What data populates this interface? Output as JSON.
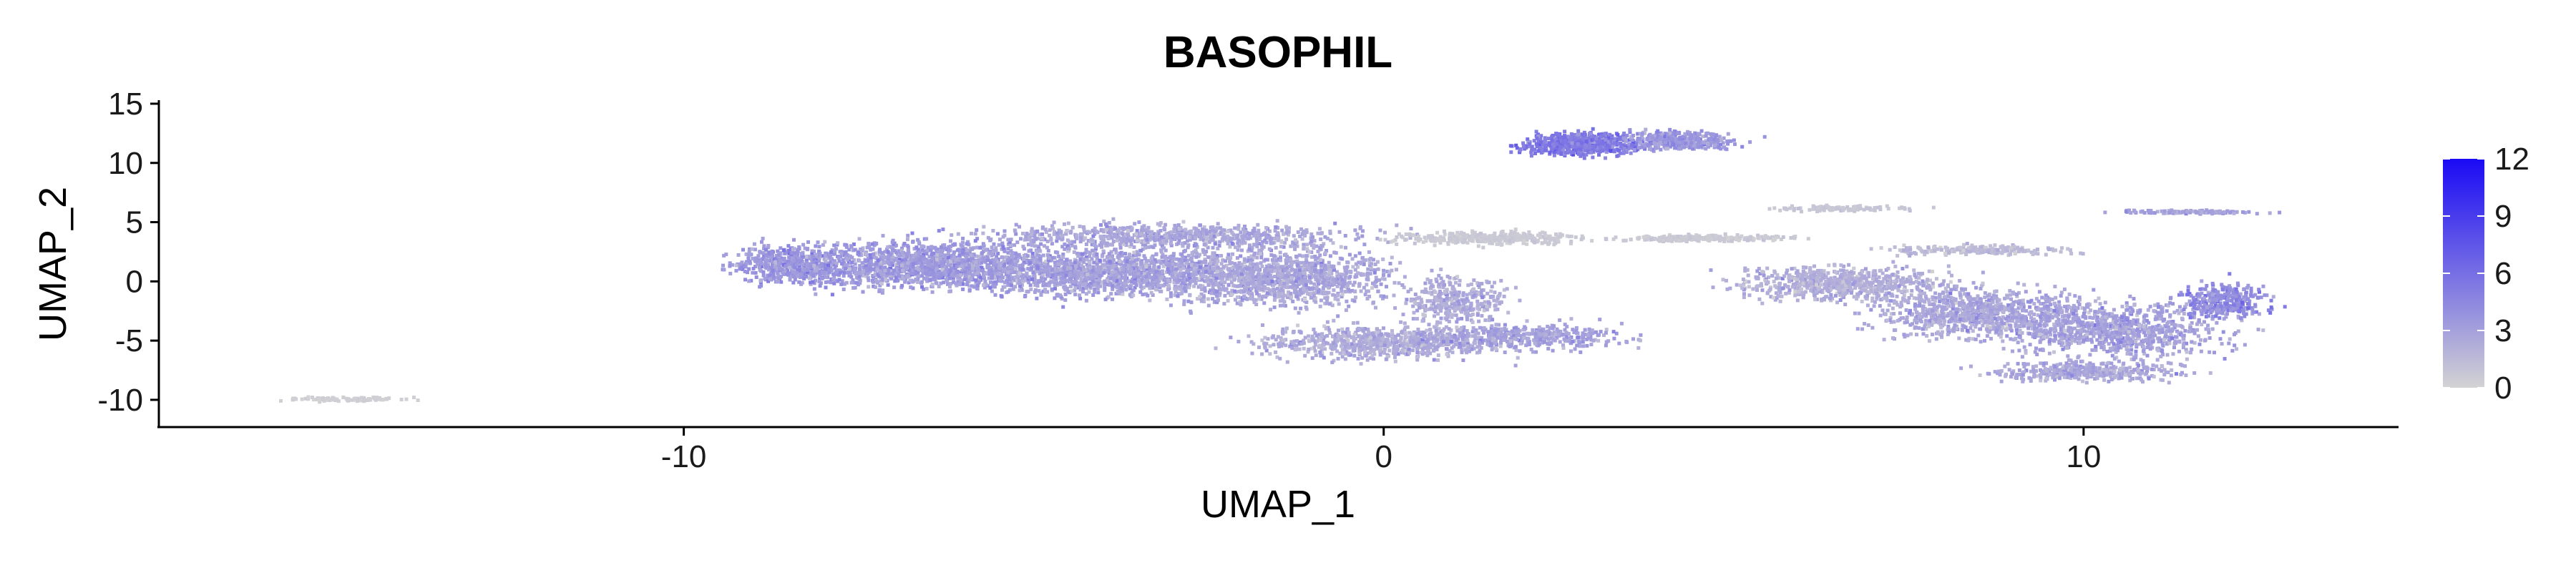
{
  "chart_data": {
    "type": "scatter",
    "title": "BASOPHIL",
    "xlabel": "UMAP_1",
    "ylabel": "UMAP_2",
    "xlim": [
      -17.5,
      14.5
    ],
    "ylim": [
      -12.3,
      15.3
    ],
    "x_ticks": [
      -10,
      0,
      10
    ],
    "y_ticks": [
      15,
      10,
      5,
      0,
      -5,
      -10
    ],
    "grid": false,
    "legend": {
      "placement": "right",
      "type": "colorbar",
      "min": 0,
      "max": 12,
      "ticks": [
        12,
        9,
        6,
        3,
        0
      ],
      "color_low": "#d3d3d3",
      "color_high": "#1a0af5"
    },
    "point_color_low": "#d3d3d3",
    "point_color_high": "#1a0af5"
  }
}
